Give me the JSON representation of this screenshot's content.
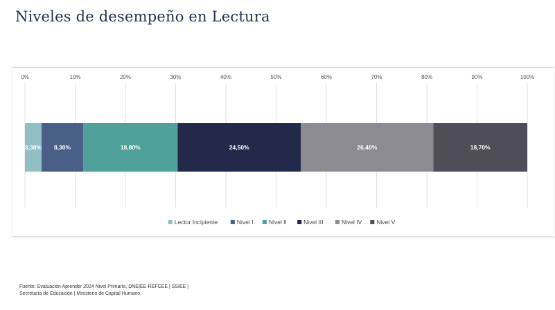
{
  "page": {
    "title": "Niveles de desempeño en Lectura",
    "source_line1": "Fuente: Evaluación Aprender 2024 Nivel Primario, DNEIEE-REFCEE | SSIEE |",
    "source_line2": "Secretaría de Educación | Ministerio de Capital Humano"
  },
  "chart_data": {
    "type": "bar",
    "orientation": "horizontal",
    "stacked": true,
    "xlim": [
      0,
      100
    ],
    "x_ticks": [
      "0%",
      "10%",
      "20%",
      "30%",
      "40%",
      "50%",
      "60%",
      "70%",
      "80%",
      "90%",
      "100%"
    ],
    "grid": true,
    "legend_position": "bottom",
    "series": [
      {
        "name": "Lector Incipiente",
        "value": 3.3,
        "label": "3,30%",
        "color": "#92bfc4"
      },
      {
        "name": "Nivel I",
        "value": 8.3,
        "label": "8,30%",
        "color": "#4a5f87"
      },
      {
        "name": "Nivel II",
        "value": 18.8,
        "label": "18,80%",
        "color": "#4f9f9b"
      },
      {
        "name": "Nivel III",
        "value": 24.5,
        "label": "24,50%",
        "color": "#23294b"
      },
      {
        "name": "Nivel IV",
        "value": 26.4,
        "label": "26,40%",
        "color": "#8d8b92"
      },
      {
        "name": "Nivel V",
        "value": 18.7,
        "label": "18,70%",
        "color": "#4e4d58"
      }
    ]
  }
}
